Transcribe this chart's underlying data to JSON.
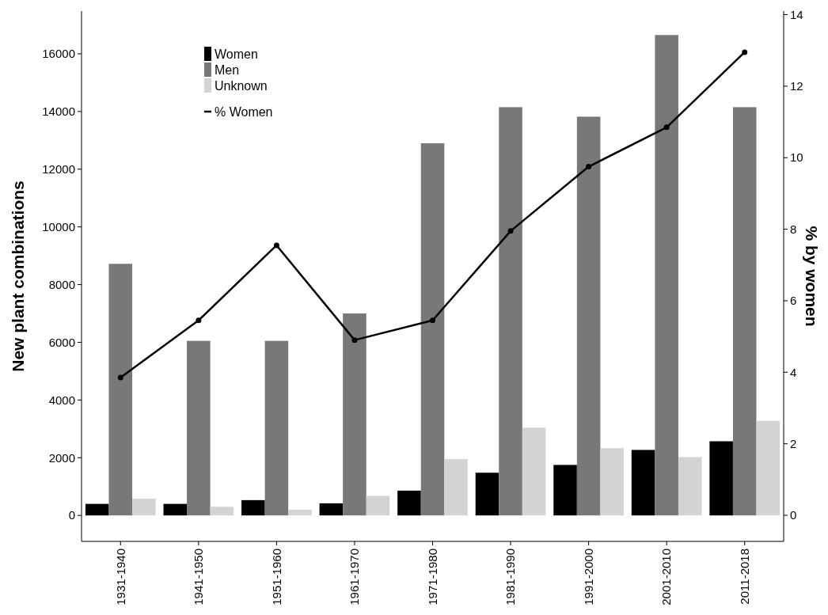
{
  "chart_data": {
    "type": "bar",
    "ylabel": "New plant combinations",
    "y2label": "% by women",
    "categories": [
      "1931-1940",
      "1941-1950",
      "1951-1960",
      "1961-1970",
      "1971-1980",
      "1981-1990",
      "1991-2000",
      "2001-2010",
      "2011-2018"
    ],
    "series": [
      {
        "name": "Women",
        "color": "#000000",
        "values": [
          400,
          400,
          530,
          420,
          860,
          1480,
          1750,
          2270,
          2570
        ]
      },
      {
        "name": "Men",
        "color": "#787878",
        "values": [
          8720,
          6050,
          6050,
          7000,
          12900,
          14150,
          13820,
          16650,
          14150
        ]
      },
      {
        "name": "Unknown",
        "color": "#d3d3d3",
        "values": [
          580,
          300,
          200,
          680,
          1950,
          3040,
          2330,
          2020,
          3280
        ]
      },
      {
        "name": "% Women",
        "type": "line",
        "axis": "y2",
        "color": "#000000",
        "marker": "circle",
        "values": [
          3.85,
          5.45,
          7.55,
          4.9,
          5.45,
          7.95,
          9.75,
          10.85,
          12.95
        ]
      }
    ],
    "ylim": [
      -900,
      17480
    ],
    "yticks": [
      0,
      2000,
      4000,
      6000,
      8000,
      10000,
      12000,
      14000,
      16000
    ],
    "y2lim": [
      -0.73,
      14.1
    ],
    "y2ticks": [
      0,
      2,
      4,
      6,
      8,
      10,
      12,
      14
    ],
    "legend": "top left",
    "grid": false
  }
}
